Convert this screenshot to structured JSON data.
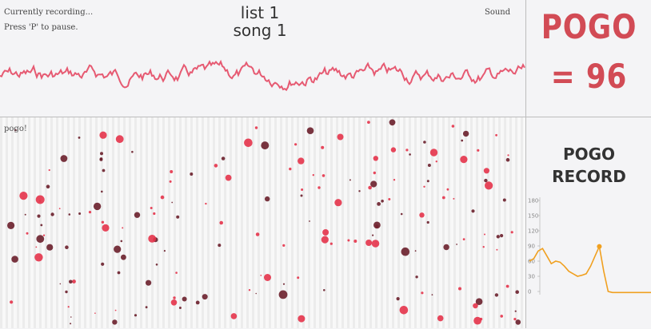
{
  "status": {
    "recording": "Currently recording...",
    "pause_hint": "Press 'P' to pause.",
    "sound_label": "Sound"
  },
  "track": {
    "list": "list 1",
    "song": "song 1"
  },
  "pogo": {
    "label": "POGO",
    "value": "= 96"
  },
  "dance_floor": {
    "label": "pogo!"
  },
  "record": {
    "title_line1": "POGO",
    "title_line2": "RECORD"
  },
  "colors": {
    "accent": "#d24b55",
    "wave": "#e65a72",
    "record_line": "#f0a020",
    "dot_dark": "#6a1f2b",
    "dot_red": "#e4334a"
  },
  "chart_data": {
    "type": "line",
    "y_ticks": [
      "180",
      "150",
      "120",
      "90",
      "60",
      "30",
      "0"
    ],
    "ylim": [
      0,
      180
    ],
    "values": [
      60,
      65,
      80,
      85,
      70,
      55,
      60,
      58,
      50,
      40,
      35,
      30,
      32,
      35,
      50,
      70,
      89,
      40,
      0,
      -2,
      -2,
      -2,
      -2,
      -2,
      -2,
      -2,
      -2,
      -2,
      -2
    ],
    "peak": 89
  }
}
